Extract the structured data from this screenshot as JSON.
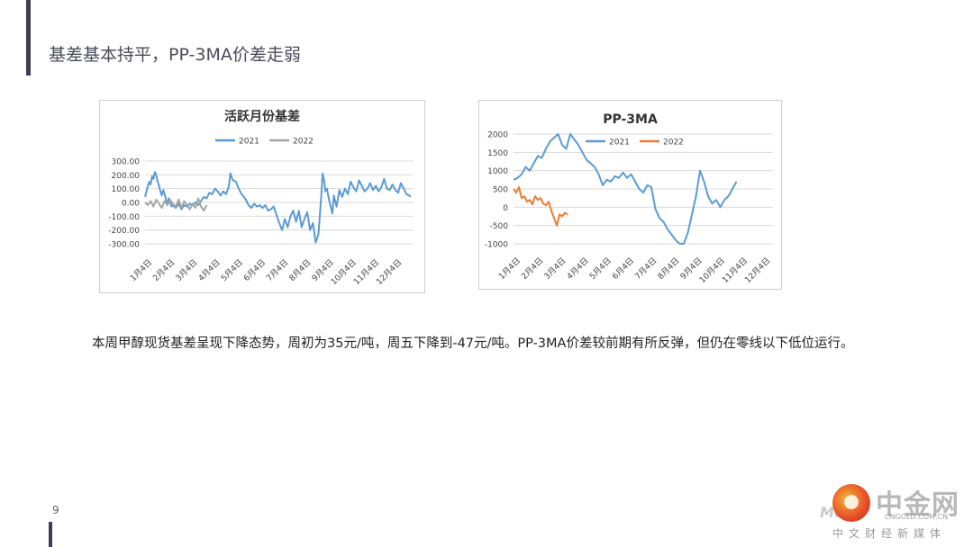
{
  "slide": {
    "title": "基差基本持平，PP-3MA价差走弱",
    "body": "本周甲醇现货基差呈现下降态势，周初为35元/吨，周五下降到-47元/吨。PP-3MA价差较前期有所反弹，但仍在零线以下低位运行。",
    "page_number": "9"
  },
  "watermark": {
    "brand": "中金网",
    "domain": "CNGOLD.COM.CN",
    "tagline": "中文财经新媒体",
    "mo": "Mo"
  },
  "colors": {
    "series2021": "#5b9bd5",
    "series2022_chart1": "#a5a5a5",
    "series2022_chart2": "#ed7d31",
    "grid": "#d9d9d9"
  },
  "chart_data": [
    {
      "type": "line",
      "title": "活跃月份基差",
      "categories": [
        "1月4日",
        "2月4日",
        "3月4日",
        "4月4日",
        "5月4日",
        "6月4日",
        "7月4日",
        "8月4日",
        "9月4日",
        "10月4日",
        "11月4日",
        "12月4日"
      ],
      "yticks": [
        "300.00",
        "200.00",
        "100.00",
        "0.00",
        "-100.00",
        "-200.00",
        "-300.00"
      ],
      "ylim": [
        -300,
        300
      ],
      "legend": "top",
      "series": [
        {
          "name": "2021",
          "color": "#5b9bd5",
          "points": [
            [
              0,
              40
            ],
            [
              0.1,
              80
            ],
            [
              0.2,
              120
            ],
            [
              0.3,
              150
            ],
            [
              0.4,
              130
            ],
            [
              0.5,
              190
            ],
            [
              0.6,
              170
            ],
            [
              0.7,
              220
            ],
            [
              0.8,
              200
            ],
            [
              0.9,
              150
            ],
            [
              1.0,
              120
            ],
            [
              1.1,
              80
            ],
            [
              1.2,
              50
            ],
            [
              1.3,
              90
            ],
            [
              1.4,
              60
            ],
            [
              1.5,
              20
            ],
            [
              1.6,
              -10
            ],
            [
              1.7,
              30
            ],
            [
              1.8,
              0
            ],
            [
              1.9,
              -30
            ],
            [
              2.0,
              -20
            ],
            [
              2.2,
              -40
            ],
            [
              2.4,
              -10
            ],
            [
              2.6,
              -50
            ],
            [
              2.8,
              -20
            ],
            [
              3.0,
              -30
            ],
            [
              3.2,
              -10
            ],
            [
              3.4,
              -20
            ],
            [
              3.6,
              0
            ],
            [
              3.8,
              -20
            ],
            [
              4.0,
              10
            ],
            [
              4.2,
              40
            ],
            [
              4.4,
              30
            ],
            [
              4.6,
              70
            ],
            [
              4.8,
              60
            ],
            [
              5.0,
              100
            ],
            [
              5.2,
              80
            ],
            [
              5.4,
              50
            ],
            [
              5.6,
              80
            ],
            [
              5.8,
              60
            ],
            [
              6.0,
              120
            ],
            [
              6.1,
              210
            ],
            [
              6.2,
              180
            ],
            [
              6.3,
              160
            ],
            [
              6.5,
              150
            ],
            [
              6.7,
              100
            ],
            [
              6.9,
              60
            ],
            [
              7.0,
              50
            ],
            [
              7.2,
              20
            ],
            [
              7.4,
              -20
            ],
            [
              7.6,
              -40
            ],
            [
              7.8,
              -10
            ],
            [
              8.0,
              -30
            ],
            [
              8.2,
              -20
            ],
            [
              8.4,
              -40
            ],
            [
              8.6,
              -20
            ],
            [
              8.8,
              -60
            ],
            [
              9.0,
              -50
            ],
            [
              9.2,
              -30
            ],
            [
              9.4,
              -90
            ],
            [
              9.6,
              -150
            ],
            [
              9.8,
              -200
            ],
            [
              10.0,
              -120
            ],
            [
              10.2,
              -180
            ],
            [
              10.4,
              -100
            ],
            [
              10.6,
              -60
            ],
            [
              10.8,
              -140
            ],
            [
              11.0,
              -60
            ],
            [
              11.2,
              -180
            ],
            [
              11.4,
              -120
            ],
            [
              11.6,
              -70
            ],
            [
              11.8,
              -200
            ],
            [
              12.0,
              -150
            ],
            [
              12.2,
              -290
            ],
            [
              12.4,
              -230
            ],
            [
              12.6,
              50
            ],
            [
              12.7,
              210
            ],
            [
              12.8,
              160
            ],
            [
              12.9,
              80
            ],
            [
              13.0,
              100
            ],
            [
              13.2,
              0
            ],
            [
              13.4,
              -80
            ],
            [
              13.5,
              50
            ],
            [
              13.7,
              -30
            ],
            [
              13.9,
              90
            ],
            [
              14.1,
              40
            ],
            [
              14.3,
              100
            ],
            [
              14.5,
              60
            ],
            [
              14.7,
              150
            ],
            [
              14.9,
              110
            ],
            [
              15.1,
              80
            ],
            [
              15.3,
              160
            ],
            [
              15.5,
              120
            ],
            [
              15.7,
              80
            ],
            [
              15.9,
              100
            ],
            [
              16.1,
              140
            ],
            [
              16.3,
              90
            ],
            [
              16.5,
              120
            ],
            [
              16.7,
              80
            ],
            [
              16.9,
              110
            ],
            [
              17.1,
              170
            ],
            [
              17.3,
              100
            ],
            [
              17.5,
              90
            ],
            [
              17.7,
              130
            ],
            [
              17.9,
              90
            ],
            [
              18.1,
              70
            ],
            [
              18.3,
              140
            ],
            [
              18.5,
              100
            ],
            [
              18.7,
              60
            ],
            [
              18.9,
              50
            ],
            [
              19.0,
              40
            ]
          ]
        },
        {
          "name": "2022",
          "color": "#a5a5a5",
          "points": [
            [
              0,
              0
            ],
            [
              0.2,
              -20
            ],
            [
              0.4,
              10
            ],
            [
              0.6,
              -30
            ],
            [
              0.8,
              20
            ],
            [
              1.0,
              -10
            ],
            [
              1.2,
              -40
            ],
            [
              1.4,
              10
            ],
            [
              1.6,
              -20
            ],
            [
              1.8,
              20
            ],
            [
              2.0,
              -10
            ],
            [
              2.2,
              -30
            ],
            [
              2.4,
              20
            ],
            [
              2.6,
              -40
            ],
            [
              2.8,
              10
            ],
            [
              3.0,
              -20
            ],
            [
              3.2,
              -50
            ],
            [
              3.4,
              -10
            ],
            [
              3.6,
              -40
            ],
            [
              3.8,
              30
            ],
            [
              4.0,
              -30
            ],
            [
              4.2,
              -60
            ],
            [
              4.4,
              -20
            ]
          ]
        }
      ]
    },
    {
      "type": "line",
      "title": "PP-3MA",
      "categories": [
        "1月4日",
        "2月4日",
        "3月4日",
        "4月4日",
        "5月4日",
        "6月4日",
        "7月4日",
        "8月4日",
        "9月4日",
        "10月4日",
        "11月4日",
        "12月4日"
      ],
      "yticks": [
        "2000",
        "1500",
        "1000",
        "500",
        "0",
        "-500",
        "-1000"
      ],
      "ylim": [
        -1000,
        2000
      ],
      "legend": "top",
      "series": [
        {
          "name": "2021",
          "color": "#5b9bd5",
          "points": [
            [
              0,
              750
            ],
            [
              0.3,
              800
            ],
            [
              0.6,
              900
            ],
            [
              0.9,
              1100
            ],
            [
              1.2,
              1000
            ],
            [
              1.5,
              1200
            ],
            [
              1.8,
              1400
            ],
            [
              2.1,
              1350
            ],
            [
              2.4,
              1600
            ],
            [
              2.7,
              1800
            ],
            [
              3.0,
              1900
            ],
            [
              3.3,
              2050
            ],
            [
              3.6,
              1700
            ],
            [
              3.9,
              1600
            ],
            [
              4.2,
              2000
            ],
            [
              4.5,
              1850
            ],
            [
              4.8,
              1700
            ],
            [
              5.1,
              1500
            ],
            [
              5.4,
              1300
            ],
            [
              5.7,
              1200
            ],
            [
              6.0,
              1100
            ],
            [
              6.3,
              900
            ],
            [
              6.6,
              600
            ],
            [
              6.9,
              750
            ],
            [
              7.2,
              700
            ],
            [
              7.5,
              850
            ],
            [
              7.8,
              800
            ],
            [
              8.1,
              950
            ],
            [
              8.4,
              800
            ],
            [
              8.7,
              900
            ],
            [
              9.0,
              700
            ],
            [
              9.3,
              500
            ],
            [
              9.6,
              400
            ],
            [
              9.9,
              600
            ],
            [
              10.2,
              550
            ],
            [
              10.5,
              -50
            ],
            [
              10.8,
              -300
            ],
            [
              11.1,
              -400
            ],
            [
              11.4,
              -600
            ],
            [
              11.7,
              -750
            ],
            [
              12.0,
              -900
            ],
            [
              12.3,
              -1000
            ],
            [
              12.6,
              -1000
            ],
            [
              12.9,
              -700
            ],
            [
              13.2,
              -200
            ],
            [
              13.5,
              300
            ],
            [
              13.8,
              1000
            ],
            [
              14.1,
              700
            ],
            [
              14.4,
              300
            ],
            [
              14.7,
              100
            ],
            [
              15.0,
              200
            ],
            [
              15.3,
              0
            ],
            [
              15.6,
              200
            ],
            [
              15.9,
              300
            ],
            [
              16.2,
              500
            ],
            [
              16.5,
              700
            ]
          ]
        },
        {
          "name": "2022",
          "color": "#ed7d31",
          "points": [
            [
              0,
              500
            ],
            [
              0.2,
              400
            ],
            [
              0.4,
              550
            ],
            [
              0.6,
              250
            ],
            [
              0.8,
              300
            ],
            [
              1.0,
              150
            ],
            [
              1.2,
              200
            ],
            [
              1.4,
              80
            ],
            [
              1.6,
              300
            ],
            [
              1.8,
              200
            ],
            [
              2.0,
              250
            ],
            [
              2.2,
              100
            ],
            [
              2.4,
              50
            ],
            [
              2.6,
              150
            ],
            [
              2.8,
              -100
            ],
            [
              3.0,
              -300
            ],
            [
              3.2,
              -500
            ],
            [
              3.4,
              -200
            ],
            [
              3.6,
              -250
            ],
            [
              3.8,
              -150
            ],
            [
              4.0,
              -200
            ]
          ]
        }
      ]
    }
  ]
}
